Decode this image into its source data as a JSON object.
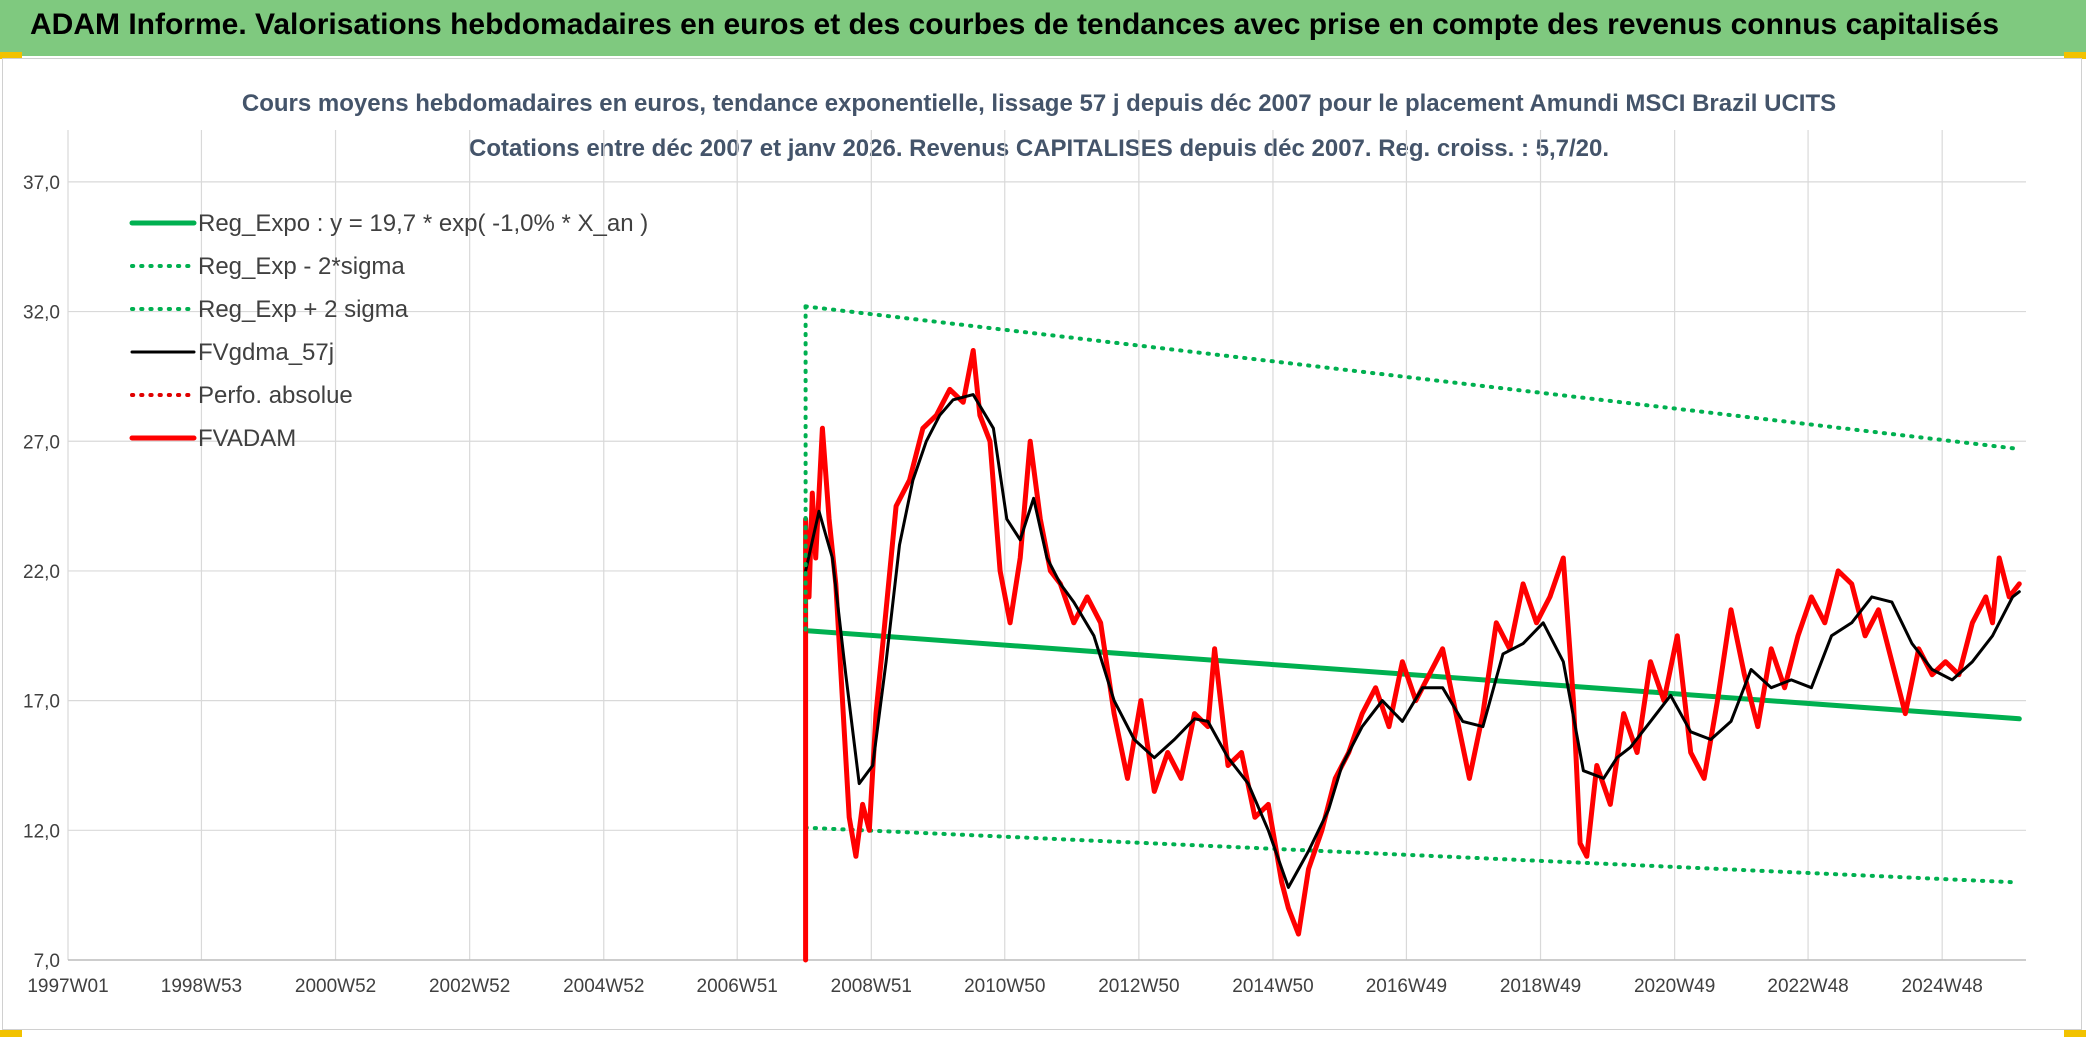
{
  "banner": {
    "title": "ADAM Informe. Valorisations hebdomadaires en euros et des courbes de tendances avec prise en compte des revenus connus capitalisés",
    "color": "#7fc97f"
  },
  "chart_data": {
    "type": "line",
    "title": "Cours moyens hebdomadaires en euros, tendance exponentielle, lissage 57 j depuis déc 2007 pour le placement Amundi MSCI Brazil UCITS",
    "subtitle": "Cotations entre déc 2007 et janv 2026. Revenus CAPITALISES depuis déc 2007. Reg. croiss. : 5,7/20.",
    "xlabel": "",
    "ylabel": "",
    "xlim": [
      1997.0,
      2026.2
    ],
    "ylim": [
      7.0,
      39.0
    ],
    "yticks": [
      7.0,
      12.0,
      17.0,
      22.0,
      27.0,
      32.0,
      37.0
    ],
    "ytick_labels": [
      "7,0",
      "12,0",
      "17,0",
      "22,0",
      "27,0",
      "32,0",
      "37,0"
    ],
    "xticks": [
      1997.0,
      1998.99,
      2000.99,
      2002.99,
      2004.99,
      2006.98,
      2008.98,
      2010.97,
      2012.97,
      2014.97,
      2016.96,
      2018.96,
      2020.96,
      2022.95,
      2024.95
    ],
    "xtick_labels": [
      "1997W01",
      "1998W53",
      "2000W52",
      "2002W52",
      "2004W52",
      "2006W51",
      "2008W51",
      "2010W50",
      "2012W50",
      "2014W50",
      "2016W49",
      "2018W49",
      "2020W49",
      "2022W48",
      "2024W48"
    ],
    "legend_position": "top-left",
    "series": [
      {
        "name": "Reg_Expo : y = 19,7 * exp( -1,0% *  X_an )",
        "color": "#00b050",
        "style": "solid-thick",
        "x": [
          2008.0,
          2026.1
        ],
        "values": [
          19.7,
          16.3
        ]
      },
      {
        "name": "Reg_Exp - 2*sigma",
        "color": "#00b050",
        "style": "dotted",
        "x": [
          2008.0,
          2026.0
        ],
        "values": [
          12.1,
          10.0
        ]
      },
      {
        "name": "Reg_Exp + 2 sigma",
        "color": "#00b050",
        "style": "dotted",
        "x": [
          2008.0,
          2026.1
        ],
        "values": [
          32.2,
          26.7
        ]
      },
      {
        "name": "FVgdma_57j",
        "color": "#000000",
        "style": "solid",
        "x": [
          2008.0,
          2008.2,
          2008.4,
          2008.6,
          2008.8,
          2009.0,
          2009.2,
          2009.4,
          2009.6,
          2009.8,
          2010.0,
          2010.2,
          2010.5,
          2010.8,
          2011.0,
          2011.2,
          2011.4,
          2011.6,
          2011.8,
          2012.0,
          2012.3,
          2012.6,
          2012.9,
          2013.2,
          2013.5,
          2013.8,
          2014.0,
          2014.3,
          2014.6,
          2014.9,
          2015.2,
          2015.5,
          2015.8,
          2016.0,
          2016.3,
          2016.6,
          2016.9,
          2017.2,
          2017.5,
          2017.8,
          2018.1,
          2018.4,
          2018.7,
          2019.0,
          2019.3,
          2019.6,
          2019.9,
          2020.1,
          2020.3,
          2020.6,
          2020.9,
          2021.2,
          2021.5,
          2021.8,
          2022.1,
          2022.4,
          2022.7,
          2023.0,
          2023.3,
          2023.6,
          2023.9,
          2024.2,
          2024.5,
          2024.8,
          2025.1,
          2025.4,
          2025.7,
          2026.0,
          2026.1
        ],
        "values": [
          22.0,
          24.3,
          22.5,
          18.0,
          13.8,
          14.5,
          18.5,
          23.0,
          25.5,
          27.0,
          28.0,
          28.6,
          28.8,
          27.5,
          24.0,
          23.2,
          24.8,
          22.5,
          21.5,
          20.8,
          19.5,
          17.0,
          15.5,
          14.8,
          15.5,
          16.3,
          16.2,
          14.8,
          13.8,
          12.0,
          9.8,
          11.2,
          12.8,
          14.5,
          16.0,
          17.0,
          16.2,
          17.5,
          17.5,
          16.2,
          16.0,
          18.8,
          19.2,
          20.0,
          18.5,
          14.3,
          14.0,
          14.8,
          15.2,
          16.2,
          17.2,
          15.8,
          15.5,
          16.2,
          18.2,
          17.5,
          17.8,
          17.5,
          19.5,
          20.0,
          21.0,
          20.8,
          19.2,
          18.2,
          17.8,
          18.5,
          19.5,
          21.0,
          21.2
        ]
      },
      {
        "name": "Perfo. absolue",
        "color": "#e00000",
        "style": "dotted",
        "x": [],
        "values": []
      },
      {
        "name": "FVADAM",
        "color": "#ff0000",
        "style": "solid-thick",
        "x": [
          2008.0,
          2008.0,
          2008.05,
          2008.1,
          2008.15,
          2008.25,
          2008.35,
          2008.45,
          2008.55,
          2008.65,
          2008.75,
          2008.85,
          2008.95,
          2009.05,
          2009.2,
          2009.35,
          2009.55,
          2009.75,
          2009.95,
          2010.15,
          2010.35,
          2010.5,
          2010.6,
          2010.75,
          2010.9,
          2011.05,
          2011.2,
          2011.35,
          2011.5,
          2011.65,
          2011.8,
          2012.0,
          2012.2,
          2012.4,
          2012.6,
          2012.8,
          2013.0,
          2013.2,
          2013.4,
          2013.6,
          2013.8,
          2014.0,
          2014.1,
          2014.3,
          2014.5,
          2014.7,
          2014.9,
          2015.1,
          2015.2,
          2015.35,
          2015.5,
          2015.7,
          2015.9,
          2016.1,
          2016.3,
          2016.5,
          2016.7,
          2016.9,
          2017.1,
          2017.3,
          2017.5,
          2017.7,
          2017.9,
          2018.1,
          2018.3,
          2018.5,
          2018.7,
          2018.9,
          2019.1,
          2019.3,
          2019.45,
          2019.55,
          2019.65,
          2019.8,
          2020.0,
          2020.2,
          2020.4,
          2020.6,
          2020.8,
          2021.0,
          2021.2,
          2021.4,
          2021.6,
          2021.8,
          2022.0,
          2022.2,
          2022.4,
          2022.6,
          2022.8,
          2023.0,
          2023.2,
          2023.4,
          2023.6,
          2023.8,
          2024.0,
          2024.2,
          2024.4,
          2024.6,
          2024.8,
          2025.0,
          2025.2,
          2025.4,
          2025.6,
          2025.7,
          2025.8,
          2025.95,
          2026.1
        ],
        "values": [
          7.0,
          24.0,
          21.0,
          25.0,
          22.5,
          27.5,
          24.0,
          21.5,
          17.0,
          12.5,
          11.0,
          13.0,
          12.0,
          16.5,
          20.5,
          24.5,
          25.5,
          27.5,
          28.0,
          29.0,
          28.5,
          30.5,
          28.0,
          27.0,
          22.0,
          20.0,
          22.5,
          27.0,
          24.0,
          22.0,
          21.5,
          20.0,
          21.0,
          20.0,
          16.5,
          14.0,
          17.0,
          13.5,
          15.0,
          14.0,
          16.5,
          16.0,
          19.0,
          14.5,
          15.0,
          12.5,
          13.0,
          10.0,
          9.0,
          8.0,
          10.5,
          12.0,
          14.0,
          15.0,
          16.5,
          17.5,
          16.0,
          18.5,
          17.0,
          18.0,
          19.0,
          16.5,
          14.0,
          16.5,
          20.0,
          19.0,
          21.5,
          20.0,
          21.0,
          22.5,
          17.0,
          11.5,
          11.0,
          14.5,
          13.0,
          16.5,
          15.0,
          18.5,
          17.0,
          19.5,
          15.0,
          14.0,
          17.0,
          20.5,
          18.0,
          16.0,
          19.0,
          17.5,
          19.5,
          21.0,
          20.0,
          22.0,
          21.5,
          19.5,
          20.5,
          18.5,
          16.5,
          19.0,
          18.0,
          18.5,
          18.0,
          20.0,
          21.0,
          20.0,
          22.5,
          21.0,
          21.5
        ]
      }
    ]
  }
}
